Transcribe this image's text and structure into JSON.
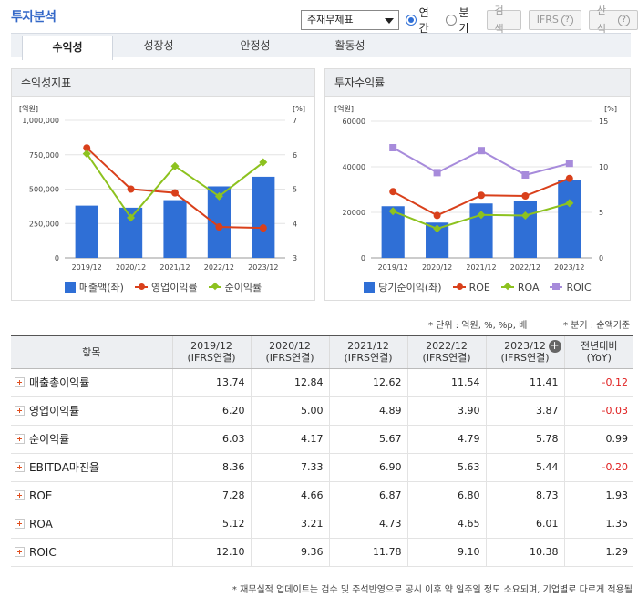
{
  "page_title": "투자분석",
  "controls": {
    "select_value": "주재무제표",
    "radio_annual": "연간",
    "radio_quarter": "분기",
    "search_btn": "검색",
    "ifrs_btn": "IFRS",
    "formula_btn": "산식",
    "help_glyph": "?"
  },
  "tabs": [
    "수익성",
    "성장성",
    "안정성",
    "활동성"
  ],
  "left_panel": {
    "title": "수익성지표",
    "left_unit": "[억원]",
    "right_unit": "[%]",
    "legend": [
      "매출액(좌)",
      "영업이익률",
      "순이익률"
    ]
  },
  "right_panel": {
    "title": "투자수익률",
    "left_unit": "[억원]",
    "right_unit": "[%]",
    "legend": [
      "당기순이익(좌)",
      "ROE",
      "ROA",
      "ROIC"
    ]
  },
  "chart_data": [
    {
      "type": "bar",
      "title": "수익성지표",
      "categories": [
        "2019/12",
        "2020/12",
        "2021/12",
        "2022/12",
        "2023/12"
      ],
      "left_axis": {
        "unit": "[억원]",
        "ylim": [
          0,
          1000000
        ],
        "ticks": [
          "0",
          "250,000",
          "500,000",
          "750,000",
          "1,000,000"
        ]
      },
      "right_axis": {
        "unit": "[%]",
        "ylim": [
          3,
          7
        ],
        "ticks": [
          "3",
          "4",
          "5",
          "6",
          "7"
        ]
      },
      "series": [
        {
          "name": "매출액(좌)",
          "kind": "bar",
          "axis": "left",
          "color": "#2f6fd6",
          "values": [
            380000,
            365000,
            420000,
            520000,
            590000
          ]
        },
        {
          "name": "영업이익률",
          "kind": "line",
          "axis": "right",
          "color": "#d9401b",
          "marker": "circle",
          "values": [
            6.2,
            5.0,
            4.89,
            3.9,
            3.87
          ]
        },
        {
          "name": "순이익률",
          "kind": "line",
          "axis": "right",
          "color": "#8dc21f",
          "marker": "diamond",
          "values": [
            6.03,
            4.17,
            5.67,
            4.79,
            5.78
          ]
        }
      ],
      "grid": true,
      "legend": "bottom"
    },
    {
      "type": "bar",
      "title": "투자수익률",
      "categories": [
        "2019/12",
        "2020/12",
        "2021/12",
        "2022/12",
        "2023/12"
      ],
      "left_axis": {
        "unit": "[억원]",
        "ylim": [
          0,
          60000
        ],
        "ticks": [
          "0",
          "20000",
          "40000",
          "60000"
        ]
      },
      "right_axis": {
        "unit": "[%]",
        "ylim": [
          0,
          15
        ],
        "ticks": [
          "0",
          "5",
          "10",
          "15"
        ]
      },
      "series": [
        {
          "name": "당기순이익(좌)",
          "kind": "bar",
          "axis": "left",
          "color": "#2f6fd6",
          "values": [
            22700,
            15500,
            23900,
            24800,
            34400
          ]
        },
        {
          "name": "ROE",
          "kind": "line",
          "axis": "right",
          "color": "#d9401b",
          "marker": "circle",
          "values": [
            7.28,
            4.66,
            6.87,
            6.8,
            8.73
          ]
        },
        {
          "name": "ROA",
          "kind": "line",
          "axis": "right",
          "color": "#8dc21f",
          "marker": "diamond",
          "values": [
            5.12,
            3.21,
            4.73,
            4.65,
            6.01
          ]
        },
        {
          "name": "ROIC",
          "kind": "line",
          "axis": "right",
          "color": "#a78bdb",
          "marker": "square",
          "values": [
            12.1,
            9.36,
            11.78,
            9.1,
            10.38
          ]
        }
      ],
      "grid": true,
      "legend": "bottom"
    }
  ],
  "notes": {
    "unit_note": "* 단위 : 억원, %, %p, 배",
    "quarter_note": "* 분기 : 순액기준"
  },
  "table": {
    "col_item": "항목",
    "columns": [
      {
        "year": "2019/12",
        "basis": "(IFRS연결)"
      },
      {
        "year": "2020/12",
        "basis": "(IFRS연결)"
      },
      {
        "year": "2021/12",
        "basis": "(IFRS연결)"
      },
      {
        "year": "2022/12",
        "basis": "(IFRS연결)"
      },
      {
        "year": "2023/12",
        "basis": "(IFRS연결)"
      }
    ],
    "col_yoy": "전년대비",
    "col_yoy_sub": "(YoY)",
    "expand_glyph": "+",
    "rows": [
      {
        "label": "매출총이익률",
        "values": [
          "13.74",
          "12.84",
          "12.62",
          "11.54",
          "11.41"
        ],
        "yoy": "-0.12"
      },
      {
        "label": "영업이익률",
        "values": [
          "6.20",
          "5.00",
          "4.89",
          "3.90",
          "3.87"
        ],
        "yoy": "-0.03"
      },
      {
        "label": "순이익률",
        "values": [
          "6.03",
          "4.17",
          "5.67",
          "4.79",
          "5.78"
        ],
        "yoy": "0.99"
      },
      {
        "label": "EBITDA마진율",
        "values": [
          "8.36",
          "7.33",
          "6.90",
          "5.63",
          "5.44"
        ],
        "yoy": "-0.20"
      },
      {
        "label": "ROE",
        "values": [
          "7.28",
          "4.66",
          "6.87",
          "6.80",
          "8.73"
        ],
        "yoy": "1.93"
      },
      {
        "label": "ROA",
        "values": [
          "5.12",
          "3.21",
          "4.73",
          "4.65",
          "6.01"
        ],
        "yoy": "1.35"
      },
      {
        "label": "ROIC",
        "values": [
          "12.10",
          "9.36",
          "11.78",
          "9.10",
          "10.38"
        ],
        "yoy": "1.29"
      }
    ]
  },
  "footnote": "* 재무실적 업데이트는 검수 및 주석반영으로 공시 이후 약 일주일 정도 소요되며, 기업별로 다르게 적용될"
}
